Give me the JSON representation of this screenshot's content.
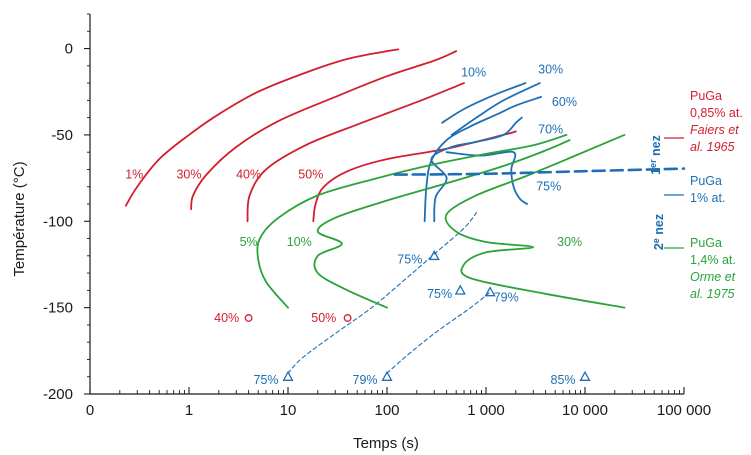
{
  "chart_data": {
    "type": "line",
    "xlabel": "Temps (s)",
    "ylabel": "Température (°C)",
    "xscale": "log",
    "xlim": [
      0.1,
      100000
    ],
    "ylim": [
      -200,
      20
    ],
    "x_ticks": [
      0.1,
      1,
      10,
      100,
      1000,
      10000,
      100000
    ],
    "x_tick_labels": [
      "0",
      "1",
      "10",
      "100",
      "1 000",
      "10 000",
      "100 000"
    ],
    "y_ticks": [
      0,
      -50,
      -100,
      -150,
      -200
    ],
    "y_tick_labels": [
      "0",
      "-50",
      "-100",
      "-150",
      "-200"
    ],
    "grid": false,
    "colors": {
      "red": "#d11f2e",
      "blue": "#1e6fb5",
      "green": "#2aa33a"
    },
    "legend": [
      {
        "lines": [
          "PuGa",
          "0,85% at."
        ],
        "italic_lines": [
          "Faiers et",
          "al. 1965"
        ],
        "color": "#d11f2e"
      },
      {
        "lines": [
          "PuGa",
          "1% at."
        ],
        "italic_lines": [],
        "color": "#1e6fb5"
      },
      {
        "lines": [
          "PuGa",
          "1,4% at."
        ],
        "italic_lines": [
          "Orme et",
          "al. 1975"
        ],
        "color": "#2aa33a"
      }
    ],
    "series": [
      {
        "label": "1%",
        "color": "#d11f2e",
        "style": "solid",
        "points": [
          [
            0.23,
            -91
          ],
          [
            0.3,
            -80
          ],
          [
            0.5,
            -64
          ],
          [
            1,
            -50
          ],
          [
            2,
            -38
          ],
          [
            5,
            -25
          ],
          [
            15,
            -14
          ],
          [
            40,
            -6
          ],
          [
            100,
            -1.5
          ],
          [
            130,
            -0.5
          ]
        ]
      },
      {
        "label": "30%",
        "color": "#d11f2e",
        "style": "solid",
        "points": [
          [
            1.05,
            -93
          ],
          [
            1.1,
            -85
          ],
          [
            1.5,
            -73
          ],
          [
            3,
            -57
          ],
          [
            8,
            -42
          ],
          [
            30,
            -28
          ],
          [
            100,
            -16
          ],
          [
            300,
            -7
          ],
          [
            500,
            -1.5
          ]
        ]
      },
      {
        "label": "40%",
        "color": "#d11f2e",
        "style": "solid",
        "points": [
          [
            3.9,
            -100
          ],
          [
            4.1,
            -85
          ],
          [
            6,
            -70
          ],
          [
            15,
            -56
          ],
          [
            50,
            -44
          ],
          [
            200,
            -31
          ],
          [
            600,
            -20
          ]
        ]
      },
      {
        "label": "50%",
        "color": "#d11f2e",
        "style": "solid",
        "points": [
          [
            18,
            -100
          ],
          [
            19,
            -90
          ],
          [
            23,
            -80
          ],
          [
            40,
            -71
          ],
          [
            100,
            -64
          ],
          [
            400,
            -58
          ],
          [
            1500,
            -50
          ],
          [
            2000,
            -48
          ]
        ]
      },
      {
        "label": "10%",
        "color": "#1e6fb5",
        "style": "solid",
        "points": [
          [
            360,
            -43
          ],
          [
            600,
            -35
          ],
          [
            1200,
            -27
          ],
          [
            2500,
            -20
          ]
        ]
      },
      {
        "label": "30%",
        "color": "#1e6fb5",
        "style": "solid",
        "points": [
          [
            450,
            -50
          ],
          [
            800,
            -40
          ],
          [
            1500,
            -30
          ],
          [
            3500,
            -20
          ]
        ]
      },
      {
        "label": "60%",
        "color": "#1e6fb5",
        "style": "solid",
        "points": [
          [
            240,
            -100
          ],
          [
            250,
            -80
          ],
          [
            280,
            -65
          ],
          [
            400,
            -53
          ],
          [
            700,
            -45
          ],
          [
            1300,
            -38
          ],
          [
            2000,
            -33
          ],
          [
            3600,
            -28
          ]
        ]
      },
      {
        "label": "70%",
        "color": "#1e6fb5",
        "style": "solid",
        "points": [
          [
            300,
            -100
          ],
          [
            310,
            -86
          ],
          [
            400,
            -75
          ],
          [
            280,
            -64
          ],
          [
            450,
            -57
          ],
          [
            800,
            -54
          ],
          [
            1500,
            -50
          ],
          [
            2000,
            -43
          ],
          [
            2300,
            -40
          ]
        ]
      },
      {
        "label": "75%",
        "color": "#1e6fb5",
        "style": "solid",
        "points": [
          [
            400,
            -60
          ],
          [
            900,
            -62
          ],
          [
            1900,
            -60
          ],
          [
            1800,
            -70
          ],
          [
            1900,
            -80
          ],
          [
            2200,
            -87
          ],
          [
            2600,
            -90
          ]
        ]
      },
      {
        "label": "75%",
        "color": "#1e6fb5",
        "style": "dashed",
        "points": [
          [
            10,
            -188
          ],
          [
            14,
            -179
          ],
          [
            30,
            -165
          ],
          [
            70,
            -150
          ],
          [
            150,
            -134
          ],
          [
            300,
            -119
          ],
          [
            600,
            -104
          ],
          [
            800,
            -95
          ]
        ]
      },
      {
        "label": "79%",
        "color": "#1e6fb5",
        "style": "dashed",
        "points": [
          [
            100,
            -188
          ],
          [
            150,
            -179
          ],
          [
            300,
            -165
          ],
          [
            700,
            -150
          ],
          [
            1100,
            -141
          ]
        ]
      },
      {
        "label": "5%",
        "color": "#2aa33a",
        "style": "solid",
        "points": [
          [
            10,
            -150
          ],
          [
            6,
            -135
          ],
          [
            5,
            -122
          ],
          [
            5.2,
            -110
          ],
          [
            8,
            -98
          ],
          [
            20,
            -85
          ],
          [
            80,
            -75
          ],
          [
            300,
            -67
          ],
          [
            1000,
            -61
          ],
          [
            3000,
            -56
          ],
          [
            6500,
            -50
          ]
        ]
      },
      {
        "label": "10%",
        "color": "#2aa33a",
        "style": "solid",
        "points": [
          [
            100,
            -150
          ],
          [
            40,
            -140
          ],
          [
            20,
            -130
          ],
          [
            20,
            -120
          ],
          [
            35,
            -113
          ],
          [
            20,
            -106
          ],
          [
            30,
            -98
          ],
          [
            100,
            -88
          ],
          [
            400,
            -78
          ],
          [
            1500,
            -68
          ],
          [
            4000,
            -59
          ],
          [
            7000,
            -53
          ]
        ]
      },
      {
        "label": "30%",
        "color": "#2aa33a",
        "style": "solid",
        "points": [
          [
            25000,
            -150
          ],
          [
            4000,
            -142
          ],
          [
            700,
            -133
          ],
          [
            600,
            -125
          ],
          [
            1000,
            -118
          ],
          [
            3000,
            -115
          ],
          [
            1000,
            -112
          ],
          [
            500,
            -106
          ],
          [
            400,
            -96
          ],
          [
            800,
            -85
          ],
          [
            2500,
            -74
          ],
          [
            8000,
            -62
          ],
          [
            25000,
            -50
          ]
        ]
      },
      {
        "label": "1er nez",
        "color": "#1e6fb5",
        "style": "dashed-thick",
        "points": [
          [
            120,
            -73
          ],
          [
            1000,
            -72.5
          ],
          [
            10000,
            -71
          ],
          [
            100000,
            -69.5
          ]
        ]
      }
    ],
    "markers": [
      {
        "label": "40%",
        "color": "#d11f2e",
        "shape": "circle",
        "x": 4,
        "y": -156
      },
      {
        "label": "50%",
        "color": "#d11f2e",
        "shape": "circle",
        "x": 40,
        "y": -156
      },
      {
        "label": "75%",
        "color": "#1e6fb5",
        "shape": "triangle",
        "x": 10,
        "y": -190
      },
      {
        "label": "79%",
        "color": "#1e6fb5",
        "shape": "triangle",
        "x": 100,
        "y": -190
      },
      {
        "label": "85%",
        "color": "#1e6fb5",
        "shape": "triangle",
        "x": 10000,
        "y": -190
      },
      {
        "label": "75%",
        "color": "#1e6fb5",
        "shape": "triangle",
        "x": 300,
        "y": -120
      },
      {
        "label": "75%",
        "color": "#1e6fb5",
        "shape": "triangle",
        "x": 550,
        "y": -140
      },
      {
        "label": "79%",
        "color": "#1e6fb5",
        "shape": "triangle",
        "x": 1100,
        "y": -141
      }
    ],
    "annotations": [
      {
        "text": "1%",
        "color": "#d11f2e",
        "x": 0.28,
        "y": -73
      },
      {
        "text": "30%",
        "color": "#d11f2e",
        "x": 1.0,
        "y": -73
      },
      {
        "text": "40%",
        "color": "#d11f2e",
        "x": 4.0,
        "y": -73
      },
      {
        "text": "50%",
        "color": "#d11f2e",
        "x": 17,
        "y": -73
      },
      {
        "text": "40%",
        "color": "#d11f2e",
        "x": 2.4,
        "y": -156
      },
      {
        "text": "50%",
        "color": "#d11f2e",
        "x": 23,
        "y": -156
      },
      {
        "text": "10%",
        "color": "#1e6fb5",
        "x": 750,
        "y": -14
      },
      {
        "text": "30%",
        "color": "#1e6fb5",
        "x": 4500,
        "y": -12
      },
      {
        "text": "60%",
        "color": "#1e6fb5",
        "x": 6200,
        "y": -31
      },
      {
        "text": "70%",
        "color": "#1e6fb5",
        "x": 4500,
        "y": -47
      },
      {
        "text": "75%",
        "color": "#1e6fb5",
        "x": 4300,
        "y": -80
      },
      {
        "text": "75%",
        "color": "#1e6fb5",
        "x": 170,
        "y": -122
      },
      {
        "text": "75%",
        "color": "#1e6fb5",
        "x": 340,
        "y": -142
      },
      {
        "text": "79%",
        "color": "#1e6fb5",
        "x": 1600,
        "y": -144
      },
      {
        "text": "75%",
        "color": "#1e6fb5",
        "x": 6,
        "y": -192
      },
      {
        "text": "79%",
        "color": "#1e6fb5",
        "x": 60,
        "y": -192
      },
      {
        "text": "85%",
        "color": "#1e6fb5",
        "x": 6000,
        "y": -192
      },
      {
        "text": "5%",
        "color": "#2aa33a",
        "x": 4.0,
        "y": -112
      },
      {
        "text": "10%",
        "color": "#2aa33a",
        "x": 13,
        "y": -112
      },
      {
        "text": "30%",
        "color": "#2aa33a",
        "x": 7000,
        "y": -112
      }
    ],
    "nez_labels": [
      {
        "text": "1",
        "sup": "er",
        "rest": " nez",
        "color": "#1e6fb5"
      },
      {
        "text": "2",
        "sup": "e",
        "rest": " nez",
        "color": "#1e6fb5"
      }
    ]
  }
}
